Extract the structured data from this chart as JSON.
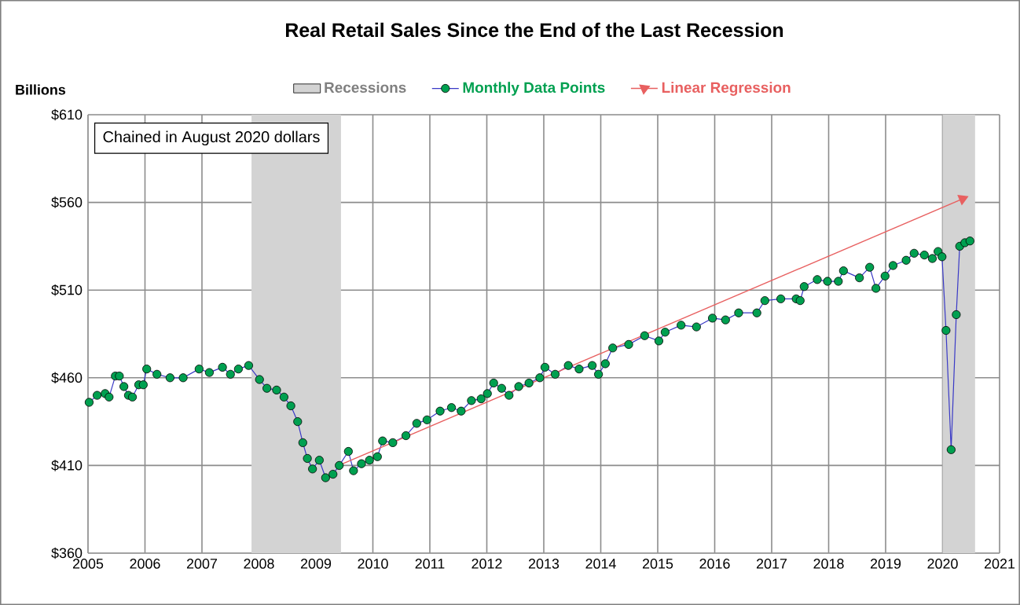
{
  "chart_data": {
    "type": "line",
    "title": "Real  Retail Sales Since the End of the Last Recession",
    "ylabel": "Billions",
    "annotations": [
      "Chained  in August 2020 dollars"
    ],
    "xlim": [
      2005,
      2021
    ],
    "xticks": [
      2005,
      2006,
      2007,
      2008,
      2009,
      2010,
      2011,
      2012,
      2013,
      2014,
      2015,
      2016,
      2017,
      2018,
      2019,
      2020,
      2021
    ],
    "ylim": [
      360,
      610
    ],
    "yticks": [
      {
        "value": 360,
        "label": "$360"
      },
      {
        "value": 410,
        "label": "$410"
      },
      {
        "value": 460,
        "label": "$460"
      },
      {
        "value": 510,
        "label": "$510"
      },
      {
        "value": 560,
        "label": "$560"
      },
      {
        "value": 610,
        "label": "$610"
      }
    ],
    "grid": true,
    "legend": "top",
    "bands": [
      {
        "axis": "x",
        "from": 2007.87,
        "to": 2009.44,
        "label": "Recessions",
        "color": "#d3d3d3"
      },
      {
        "axis": "x",
        "from": 2020.0,
        "to": 2020.57,
        "color": "#d3d3d3"
      }
    ],
    "series": [
      {
        "name": "Monthly Data Points",
        "color": "#00a050",
        "marker": "circle",
        "x": [
          2005.02,
          2005.16,
          2005.3,
          2005.37,
          2005.48,
          2005.55,
          2005.63,
          2005.71,
          2005.78,
          2005.89,
          2005.97,
          2006.03,
          2006.21,
          2006.44,
          2006.67,
          2006.95,
          2007.13,
          2007.36,
          2007.5,
          2007.64,
          2007.82,
          2008.01,
          2008.14,
          2008.31,
          2008.44,
          2008.56,
          2008.68,
          2008.77,
          2008.85,
          2008.94,
          2009.06,
          2009.17,
          2009.3,
          2009.41,
          2009.57,
          2009.66,
          2009.8,
          2009.94,
          2010.08,
          2010.17,
          2010.35,
          2010.58,
          2010.77,
          2010.95,
          2011.18,
          2011.38,
          2011.55,
          2011.73,
          2011.9,
          2012.01,
          2012.12,
          2012.26,
          2012.39,
          2012.56,
          2012.74,
          2012.93,
          2013.02,
          2013.2,
          2013.43,
          2013.62,
          2013.85,
          2013.96,
          2014.08,
          2014.21,
          2014.49,
          2014.77,
          2015.02,
          2015.13,
          2015.41,
          2015.68,
          2015.96,
          2016.19,
          2016.42,
          2016.74,
          2016.88,
          2017.16,
          2017.43,
          2017.5,
          2017.57,
          2017.8,
          2017.98,
          2018.17,
          2018.26,
          2018.54,
          2018.72,
          2018.83,
          2018.99,
          2019.13,
          2019.36,
          2019.5,
          2019.68,
          2019.82,
          2019.92,
          2019.99,
          2020.06,
          2020.15,
          2020.24,
          2020.3,
          2020.39,
          2020.48
        ],
        "values": [
          446,
          450,
          451,
          449,
          461,
          461,
          455,
          450,
          449,
          456,
          456,
          465,
          462,
          460,
          460,
          465,
          463,
          466,
          462,
          465,
          467,
          459,
          454,
          453,
          449,
          444,
          435,
          423,
          414,
          408,
          413,
          403,
          405,
          410,
          418,
          407,
          411,
          413,
          415,
          424,
          423,
          427,
          434,
          436,
          441,
          443,
          441,
          447,
          448,
          451,
          457,
          454,
          450,
          455,
          457,
          460,
          466,
          462,
          467,
          465,
          467,
          462,
          468,
          477,
          479,
          484,
          481,
          486,
          490,
          489,
          494,
          493,
          497,
          497,
          504,
          505,
          505,
          504,
          512,
          516,
          515,
          515,
          521,
          517,
          523,
          511,
          518,
          524,
          527,
          531,
          530,
          528,
          532,
          529,
          487,
          419,
          496,
          535,
          537,
          538
        ]
      },
      {
        "name": "Linear Regression",
        "color": "#e86060",
        "marker": "triangle",
        "x": [
          2009.4,
          2020.35
        ],
        "values": [
          410,
          562
        ]
      }
    ]
  }
}
